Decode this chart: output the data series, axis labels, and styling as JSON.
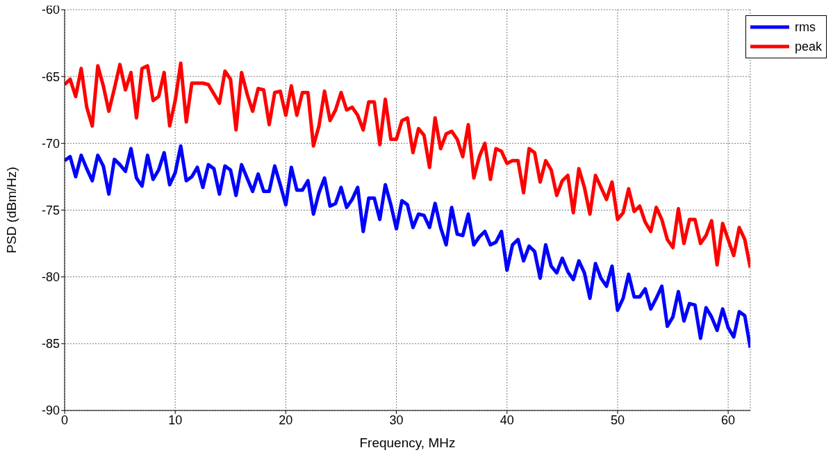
{
  "chart_data": {
    "type": "line",
    "xlabel": "Frequency, MHz",
    "ylabel": "PSD (dBm/Hz)",
    "xlim": [
      0,
      62
    ],
    "xticks": [
      0,
      10,
      20,
      30,
      40,
      50,
      60
    ],
    "ylim": [
      -90,
      -60
    ],
    "yticks": [
      -90,
      -85,
      -80,
      -75,
      -70,
      -65,
      -60
    ],
    "grid": true,
    "legend": "top right",
    "line_style": "solid",
    "marker": "none",
    "x": [
      0,
      0.5,
      1,
      1.5,
      2,
      2.5,
      3,
      3.5,
      4,
      4.5,
      5,
      5.5,
      6,
      6.5,
      7,
      7.5,
      8,
      8.5,
      9,
      9.5,
      10,
      10.5,
      11,
      11.5,
      12,
      12.5,
      13,
      13.5,
      14,
      14.5,
      15,
      15.5,
      16,
      16.5,
      17,
      17.5,
      18,
      18.5,
      19,
      19.5,
      20,
      20.5,
      21,
      21.5,
      22,
      22.5,
      23,
      23.5,
      24,
      24.5,
      25,
      25.5,
      26,
      26.5,
      27,
      27.5,
      28,
      28.5,
      29,
      29.5,
      30,
      30.5,
      31,
      31.5,
      32,
      32.5,
      33,
      33.5,
      34,
      34.5,
      35,
      35.5,
      36,
      36.5,
      37,
      37.5,
      38,
      38.5,
      39,
      39.5,
      40,
      40.5,
      41,
      41.5,
      42,
      42.5,
      43,
      43.5,
      44,
      44.5,
      45,
      45.5,
      46,
      46.5,
      47,
      47.5,
      48,
      48.5,
      49,
      49.5,
      50,
      50.5,
      51,
      51.5,
      52,
      52.5,
      53,
      53.5,
      54,
      54.5,
      55,
      55.5,
      56,
      56.5,
      57,
      57.5,
      58,
      58.5,
      59,
      59.5,
      60,
      60.5,
      61,
      61.5,
      62
    ],
    "series": [
      {
        "name": "rms",
        "color": "#0000ff",
        "values": [
          -71.3,
          -71.0,
          -72.5,
          -70.9,
          -71.9,
          -72.8,
          -70.9,
          -71.7,
          -73.8,
          -71.2,
          -71.6,
          -72.1,
          -70.4,
          -72.6,
          -73.2,
          -70.9,
          -72.7,
          -72.0,
          -70.7,
          -73.1,
          -72.2,
          -70.2,
          -72.8,
          -72.5,
          -71.8,
          -73.3,
          -71.6,
          -71.9,
          -73.8,
          -71.7,
          -72.0,
          -73.9,
          -71.6,
          -72.6,
          -73.6,
          -72.3,
          -73.6,
          -73.6,
          -71.7,
          -73.1,
          -74.6,
          -71.8,
          -73.5,
          -73.5,
          -72.8,
          -75.3,
          -73.7,
          -72.6,
          -74.7,
          -74.5,
          -73.3,
          -74.8,
          -74.2,
          -73.3,
          -76.6,
          -74.1,
          -74.1,
          -75.7,
          -73.1,
          -74.6,
          -76.4,
          -74.3,
          -74.6,
          -76.3,
          -75.3,
          -75.4,
          -76.3,
          -74.5,
          -76.3,
          -77.6,
          -74.8,
          -76.8,
          -76.9,
          -75.3,
          -77.6,
          -77.0,
          -76.6,
          -77.6,
          -77.4,
          -76.6,
          -79.5,
          -77.6,
          -77.2,
          -78.8,
          -77.7,
          -78.1,
          -80.1,
          -77.6,
          -79.2,
          -79.7,
          -78.6,
          -79.6,
          -80.2,
          -78.8,
          -79.7,
          -81.6,
          -79.0,
          -80.1,
          -80.7,
          -79.2,
          -82.5,
          -81.6,
          -79.8,
          -81.5,
          -81.5,
          -80.9,
          -82.4,
          -81.6,
          -80.7,
          -83.7,
          -83.0,
          -81.1,
          -83.3,
          -82.0,
          -82.1,
          -84.6,
          -82.3,
          -83.0,
          -84.0,
          -82.4,
          -83.8,
          -84.5,
          -82.6,
          -82.9,
          -85.3
        ]
      },
      {
        "name": "peak",
        "color": "#ff0000",
        "values": [
          -65.6,
          -65.2,
          -66.5,
          -64.4,
          -67.3,
          -68.7,
          -64.2,
          -65.7,
          -67.6,
          -65.9,
          -64.1,
          -66.0,
          -64.7,
          -68.1,
          -64.4,
          -64.2,
          -66.8,
          -66.5,
          -64.7,
          -68.7,
          -66.8,
          -64.0,
          -68.4,
          -65.5,
          -65.5,
          -65.5,
          -65.6,
          -66.3,
          -67.0,
          -64.6,
          -65.2,
          -69.0,
          -64.7,
          -66.3,
          -67.6,
          -65.9,
          -66.0,
          -68.6,
          -66.2,
          -66.1,
          -67.9,
          -65.7,
          -67.9,
          -66.2,
          -66.2,
          -70.2,
          -68.7,
          -66.1,
          -68.3,
          -67.5,
          -66.2,
          -67.5,
          -67.3,
          -67.9,
          -69.0,
          -66.9,
          -66.9,
          -70.1,
          -66.7,
          -69.7,
          -69.7,
          -68.3,
          -68.1,
          -70.7,
          -68.9,
          -69.4,
          -71.8,
          -68.1,
          -70.4,
          -69.3,
          -69.1,
          -69.7,
          -71.0,
          -68.6,
          -72.6,
          -71.0,
          -70.0,
          -72.7,
          -70.4,
          -70.6,
          -71.5,
          -71.3,
          -71.3,
          -73.7,
          -70.4,
          -70.7,
          -72.9,
          -71.3,
          -72.0,
          -73.9,
          -72.8,
          -72.4,
          -75.2,
          -71.9,
          -73.3,
          -75.3,
          -72.4,
          -73.3,
          -74.2,
          -72.9,
          -75.7,
          -75.2,
          -73.4,
          -75.1,
          -74.7,
          -75.9,
          -76.6,
          -74.8,
          -75.7,
          -77.2,
          -77.8,
          -74.9,
          -77.5,
          -75.7,
          -75.7,
          -77.5,
          -76.9,
          -75.8,
          -79.1,
          -76.0,
          -77.2,
          -78.4,
          -76.3,
          -77.2,
          -79.3
        ]
      }
    ]
  }
}
